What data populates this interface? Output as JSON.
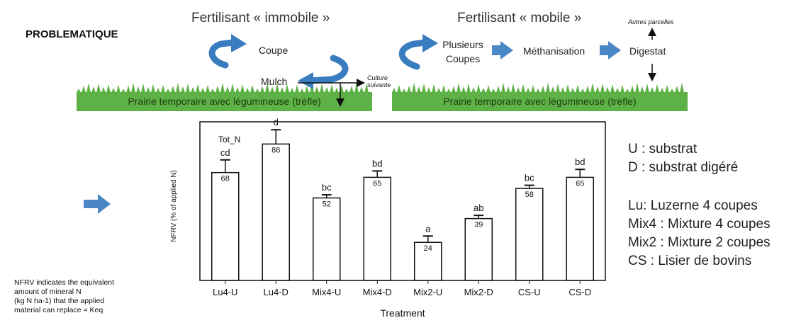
{
  "header": {
    "problem_title": "PROBLEMATIQUE",
    "title_immobile": "Fertilisant « immobile »",
    "title_mobile": "Fertilisant « mobile »"
  },
  "left_scheme": {
    "coupe": "Coupe",
    "mulch": "Mulch",
    "culture_suivante": "Culture suivante",
    "grass_label": "Prairie temporaire avec légumineuse (trèfle)"
  },
  "right_scheme": {
    "plusieurs_coupes": "Plusieurs Coupes",
    "methanisation": "Méthanisation",
    "digestat": "Digestat",
    "autres_parcelles": "Autres parcelles",
    "grass_label": "Prairie temporaire avec légumineuse (trèfle)"
  },
  "chart_data": {
    "type": "bar",
    "annotation": "Tot_N",
    "ylabel": "NFRV (% of applied N)",
    "xlabel": "Treatment",
    "categories": [
      "Lu4-U",
      "Lu4-D",
      "Mix4-U",
      "Mix4-D",
      "Mix2-U",
      "Mix2-D",
      "CS-U",
      "CS-D"
    ],
    "values": [
      68,
      86,
      52,
      65,
      24,
      39,
      58,
      65
    ],
    "errors": [
      8,
      9,
      2,
      4,
      4,
      2,
      2,
      5
    ],
    "letters": [
      "cd",
      "d",
      "bc",
      "bd",
      "a",
      "ab",
      "bc",
      "bd"
    ],
    "ylim": [
      0,
      100
    ],
    "grid": false
  },
  "legend": {
    "items": [
      "U : substrat",
      "D : substrat digéré",
      "Lu: Luzerne 4 coupes",
      "Mix4 : Mixture 4 coupes",
      "Mix2 : Mixture 2 coupes",
      "CS : Lisier de bovins"
    ]
  },
  "footnote": {
    "lines": [
      "NFRV indicates the equivalent",
      "amount of mineral N",
      "(kg N ha-1) that the applied",
      "material can replace = Keq"
    ]
  },
  "colors": {
    "grass": "#5db146",
    "grass_dark": "#3f8f2f",
    "cycle_arrow": "#3a7cc0",
    "flow_arrow": "#4b86c6"
  }
}
